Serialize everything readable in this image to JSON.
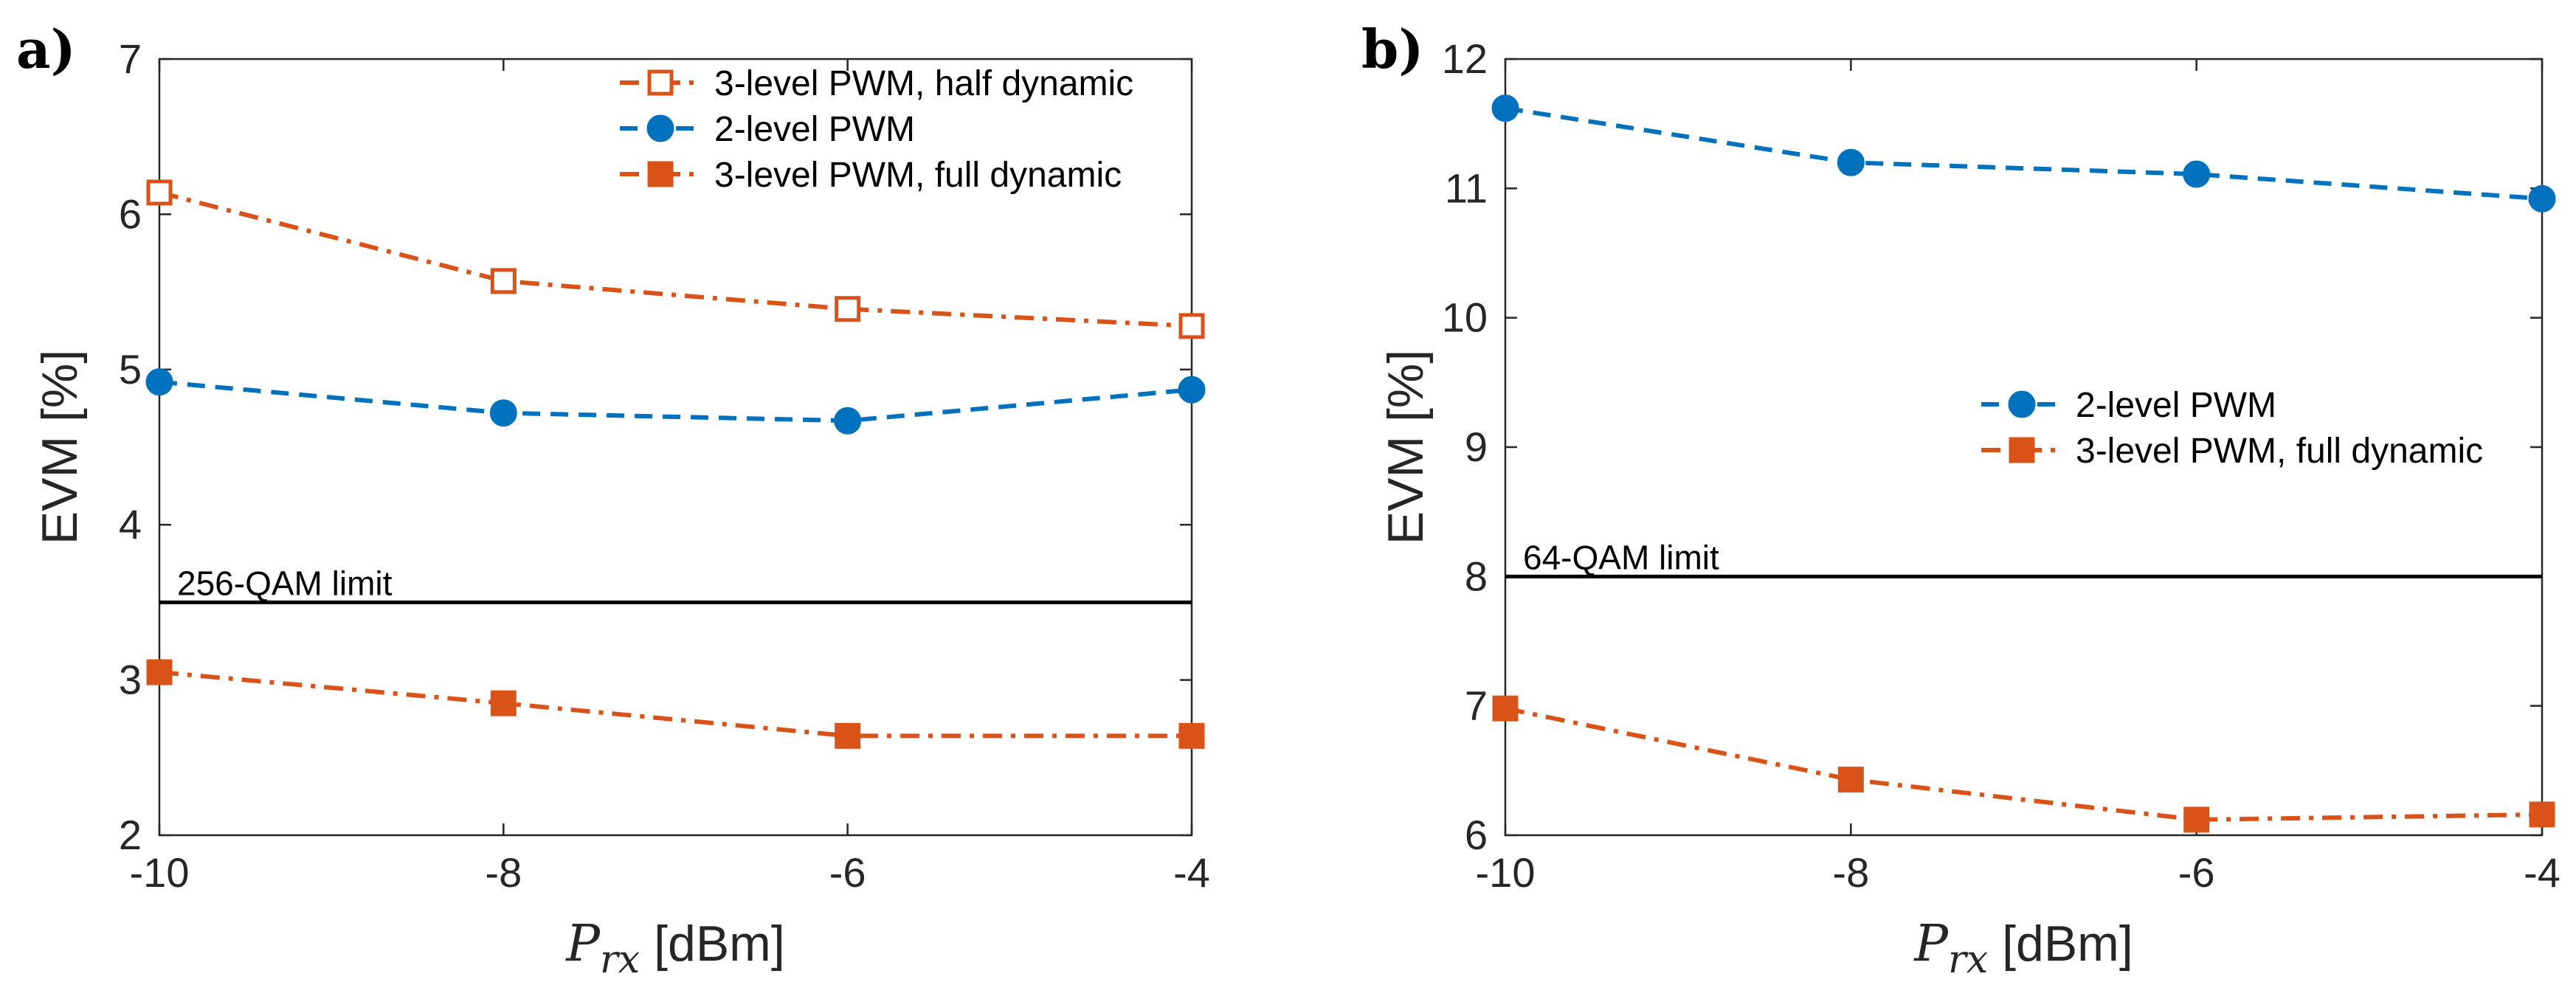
{
  "colors": {
    "blue": "#0072BD",
    "orange": "#D95319",
    "axis": "#262626",
    "ref": "#000000"
  },
  "chart_data": [
    {
      "type": "line",
      "panel_label": "a)",
      "xlabel_math": "P",
      "xlabel_sub": "rx",
      "xlabel_unit": " [dBm]",
      "ylabel": "EVM [%]",
      "xlim": [
        -10,
        -4
      ],
      "ylim": [
        2,
        7
      ],
      "xticks": [
        -10,
        -8,
        -6,
        -4
      ],
      "yticks": [
        2,
        3,
        4,
        5,
        6,
        7
      ],
      "reference_line": {
        "y": 3.5,
        "label": "256-QAM limit"
      },
      "legend_position": "top-right",
      "series": [
        {
          "name": "3-level PWM, half dynamic",
          "color": "orange",
          "marker": "square-open",
          "dash": "dashdot",
          "x": [
            -10,
            -8,
            -6,
            -4
          ],
          "y": [
            6.14,
            5.57,
            5.39,
            5.28
          ]
        },
        {
          "name": "2-level PWM",
          "color": "blue",
          "marker": "circle",
          "dash": "dash",
          "x": [
            -10,
            -8,
            -6,
            -4
          ],
          "y": [
            4.92,
            4.72,
            4.67,
            4.87
          ]
        },
        {
          "name": "3-level PWM, full dynamic",
          "color": "orange",
          "marker": "square-filled",
          "dash": "dashdot",
          "x": [
            -10,
            -8,
            -6,
            -4
          ],
          "y": [
            3.05,
            2.85,
            2.64,
            2.64
          ]
        }
      ]
    },
    {
      "type": "line",
      "panel_label": "b)",
      "xlabel_math": "P",
      "xlabel_sub": "rx",
      "xlabel_unit": " [dBm]",
      "ylabel": "EVM [%]",
      "xlim": [
        -10,
        -4
      ],
      "ylim": [
        6,
        12
      ],
      "xticks": [
        -10,
        -8,
        -6,
        -4
      ],
      "yticks": [
        6,
        7,
        8,
        9,
        10,
        11,
        12
      ],
      "reference_line": {
        "y": 8,
        "label": "64-QAM limit"
      },
      "legend_position": "center-right",
      "series": [
        {
          "name": "2-level PWM",
          "color": "blue",
          "marker": "circle",
          "dash": "dash",
          "x": [
            -10,
            -8,
            -6,
            -4
          ],
          "y": [
            11.62,
            11.2,
            11.11,
            10.92
          ]
        },
        {
          "name": "3-level PWM, full dynamic",
          "color": "orange",
          "marker": "square-filled",
          "dash": "dashdot",
          "x": [
            -10,
            -8,
            -6,
            -4
          ],
          "y": [
            6.98,
            6.43,
            6.12,
            6.16
          ]
        }
      ]
    }
  ]
}
